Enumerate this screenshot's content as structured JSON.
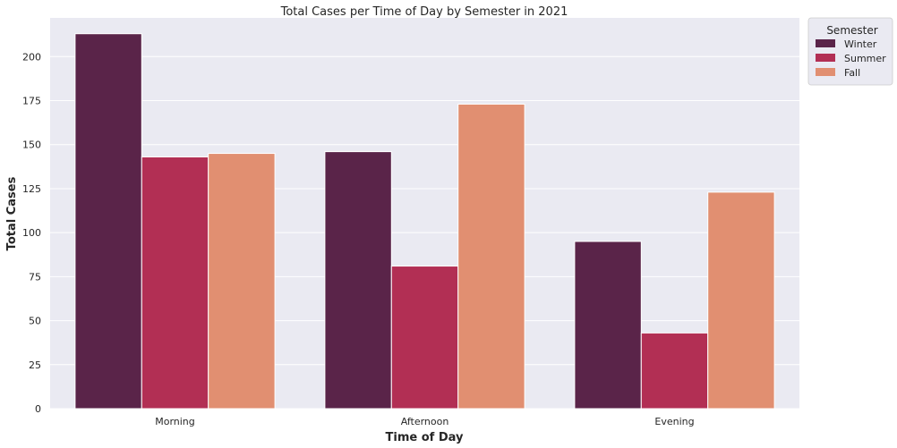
{
  "chart_data": {
    "type": "bar",
    "title": "Total Cases per Time of Day by Semester in 2021",
    "xlabel": "Time of Day",
    "ylabel": "Total Cases",
    "categories": [
      "Morning",
      "Afternoon",
      "Evening"
    ],
    "series": [
      {
        "name": "Winter",
        "values": [
          213,
          146,
          95
        ],
        "color": "#5a2449"
      },
      {
        "name": "Summer",
        "values": [
          143,
          81,
          43
        ],
        "color": "#b22f54"
      },
      {
        "name": "Fall",
        "values": [
          145,
          173,
          123
        ],
        "color": "#e18f71"
      }
    ],
    "ylim": [
      0,
      222
    ],
    "yticks": [
      0,
      25,
      50,
      75,
      100,
      125,
      150,
      175,
      200
    ],
    "grid": true,
    "legend": {
      "title": "Semester",
      "placement": "outside top-right"
    },
    "background_color": "#eaeaf2",
    "grid_color": "#ffffff"
  }
}
